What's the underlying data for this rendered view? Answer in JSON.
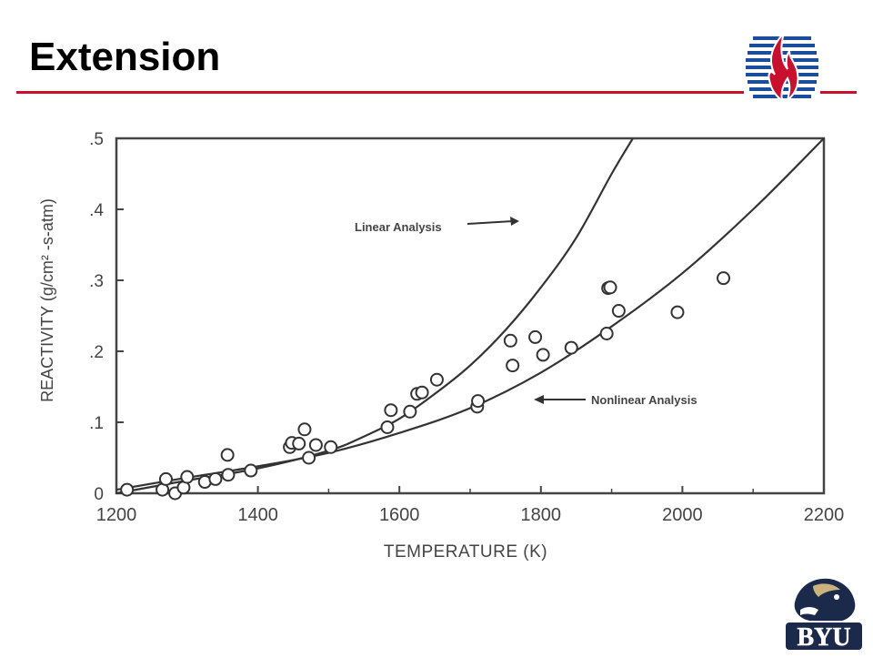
{
  "slide": {
    "title": "Extension"
  },
  "colors": {
    "accent": "#c8102e",
    "byu_navy": "#1b2a4a",
    "logo_blue": "#1a4d9c"
  },
  "logos": {
    "top_right": {
      "icon": "flame-logo-icon",
      "colors": [
        "#c8102e",
        "#1a4d9c"
      ]
    },
    "bottom_right": {
      "icon": "byu-cougar-logo-icon",
      "text": "BYU"
    }
  },
  "chart_data": {
    "type": "scatter",
    "xlabel": "TEMPERATURE (K)",
    "ylabel": "REACTIVITY (g/cm² -s-atm)",
    "xlim": [
      1200,
      2200
    ],
    "ylim": [
      0,
      0.5
    ],
    "xticks": [
      1200,
      1400,
      1600,
      1800,
      2000,
      2200
    ],
    "xtick_labels": [
      "1200",
      "1400",
      "1600",
      "1800",
      "2000",
      "2200"
    ],
    "yticks": [
      0,
      0.1,
      0.2,
      0.3,
      0.4,
      0.5
    ],
    "ytick_labels": [
      "0",
      ".1",
      ".2",
      ".3",
      ".4",
      ".5"
    ],
    "grid": false,
    "legend": "none",
    "series": [
      {
        "name": "",
        "kind": "points",
        "marker": "open-circle",
        "x": [
          1215,
          1265,
          1270,
          1283,
          1295,
          1300,
          1325,
          1340,
          1357,
          1358,
          1390,
          1445,
          1448,
          1458,
          1466,
          1472,
          1482,
          1503,
          1583,
          1588,
          1615,
          1625,
          1632,
          1653,
          1710,
          1711,
          1757,
          1760,
          1792,
          1803,
          1843,
          1893,
          1895,
          1898,
          1910,
          1993,
          2058
        ],
        "y": [
          0.005,
          0.005,
          0.02,
          0.0,
          0.008,
          0.023,
          0.016,
          0.02,
          0.054,
          0.026,
          0.032,
          0.065,
          0.071,
          0.07,
          0.09,
          0.05,
          0.068,
          0.065,
          0.093,
          0.117,
          0.115,
          0.14,
          0.142,
          0.16,
          0.122,
          0.13,
          0.215,
          0.18,
          0.22,
          0.195,
          0.205,
          0.225,
          0.289,
          0.29,
          0.257,
          0.255,
          0.303
        ]
      },
      {
        "name": "Linear Analysis",
        "kind": "line",
        "x": [
          1200,
          1300,
          1400,
          1500,
          1550,
          1600,
          1650,
          1700,
          1750,
          1800,
          1850,
          1900,
          1930
        ],
        "y": [
          0.0,
          0.018,
          0.035,
          0.06,
          0.08,
          0.105,
          0.14,
          0.18,
          0.23,
          0.29,
          0.36,
          0.45,
          0.5
        ]
      },
      {
        "name": "Nonlinear Analysis",
        "kind": "line",
        "x": [
          1200,
          1300,
          1400,
          1500,
          1600,
          1700,
          1800,
          1900,
          2000,
          2100,
          2200
        ],
        "y": [
          0.005,
          0.022,
          0.038,
          0.057,
          0.085,
          0.12,
          0.17,
          0.235,
          0.31,
          0.4,
          0.5
        ]
      }
    ],
    "annotations": [
      {
        "text": "Linear Analysis",
        "target_series": "Linear Analysis"
      },
      {
        "text": "Nonlinear Analysis",
        "target_series": "Nonlinear Analysis"
      }
    ]
  }
}
